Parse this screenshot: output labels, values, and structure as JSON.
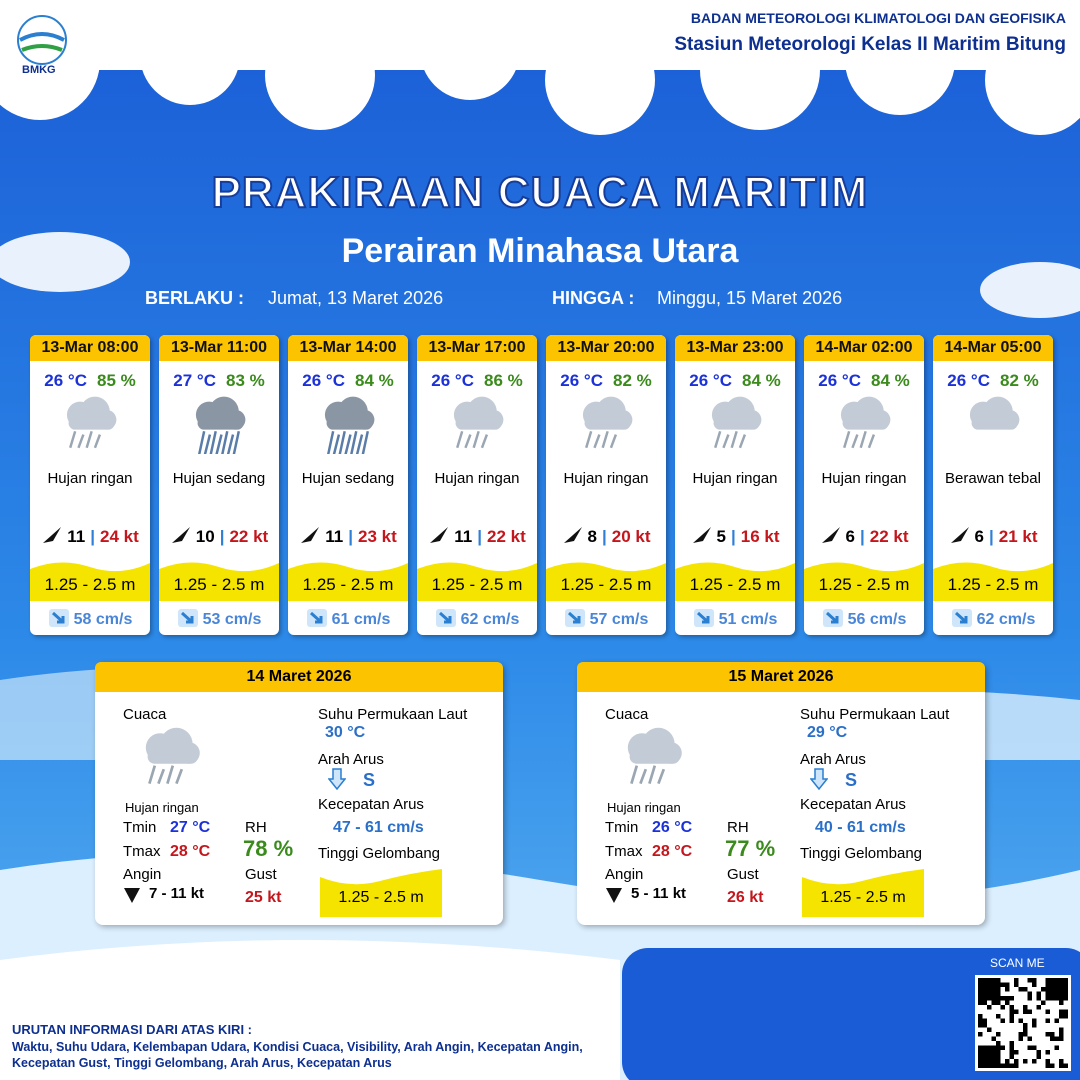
{
  "header": {
    "logo": "BMKG",
    "org": "BADAN METEOROLOGI KLIMATOLOGI DAN GEOFISIKA",
    "station": "Stasiun Meteorologi Kelas II Maritim Bitung"
  },
  "title": "PRAKIRAAN CUACA MARITIM",
  "subtitle": "Perairan Minahasa Utara",
  "validity": {
    "from_label": "BERLAKU :",
    "from": "Jumat, 13 Maret 2026",
    "to_label": "HINGGA :",
    "to": "Minggu, 15 Maret 2026"
  },
  "cards": [
    {
      "time": "13-Mar 08:00",
      "temp": "26 °C",
      "rh": "85 %",
      "weather": "Hujan ringan",
      "wind": "11",
      "gust": "24 kt",
      "wave": "1.25 - 2.5 m",
      "current": "58 cm/s"
    },
    {
      "time": "13-Mar 11:00",
      "temp": "27 °C",
      "rh": "83 %",
      "weather": "Hujan sedang",
      "wind": "10",
      "gust": "22 kt",
      "wave": "1.25 - 2.5 m",
      "current": "53 cm/s"
    },
    {
      "time": "13-Mar 14:00",
      "temp": "26 °C",
      "rh": "84 %",
      "weather": "Hujan sedang",
      "wind": "11",
      "gust": "23 kt",
      "wave": "1.25 - 2.5 m",
      "current": "61 cm/s"
    },
    {
      "time": "13-Mar 17:00",
      "temp": "26 °C",
      "rh": "86 %",
      "weather": "Hujan ringan",
      "wind": "11",
      "gust": "22 kt",
      "wave": "1.25 - 2.5 m",
      "current": "62 cm/s"
    },
    {
      "time": "13-Mar 20:00",
      "temp": "26 °C",
      "rh": "82 %",
      "weather": "Hujan ringan",
      "wind": "8",
      "gust": "20 kt",
      "wave": "1.25 - 2.5 m",
      "current": "57 cm/s"
    },
    {
      "time": "13-Mar 23:00",
      "temp": "26 °C",
      "rh": "84 %",
      "weather": "Hujan ringan",
      "wind": "5",
      "gust": "16 kt",
      "wave": "1.25 - 2.5 m",
      "current": "51 cm/s"
    },
    {
      "time": "14-Mar 02:00",
      "temp": "26 °C",
      "rh": "84 %",
      "weather": "Hujan ringan",
      "wind": "6",
      "gust": "22 kt",
      "wave": "1.25 - 2.5 m",
      "current": "56 cm/s"
    },
    {
      "time": "14-Mar 05:00",
      "temp": "26 °C",
      "rh": "82 %",
      "weather": "Berawan tebal",
      "wind": "6",
      "gust": "21 kt",
      "wave": "1.25 - 2.5 m",
      "current": "62 cm/s"
    }
  ],
  "daily_labels": {
    "weather": "Cuaca",
    "tmin": "Tmin",
    "tmax": "Tmax",
    "wind": "Angin",
    "rh": "RH",
    "gust": "Gust",
    "sst": "Suhu Permukaan Laut",
    "current_dir": "Arah Arus",
    "current_speed": "Kecepatan Arus",
    "wave": "Tinggi Gelombang"
  },
  "daily": [
    {
      "date": "14 Maret 2026",
      "weather": "Hujan ringan",
      "tmin": "27 °C",
      "tmax": "28 °C",
      "wind": "7 - 11 kt",
      "rh": "78 %",
      "gust": "25 kt",
      "sst": "30 °C",
      "current_dir": "S",
      "current_speed": "47 - 61 cm/s",
      "wave": "1.25 - 2.5 m"
    },
    {
      "date": "15 Maret 2026",
      "weather": "Hujan ringan",
      "tmin": "26 °C",
      "tmax": "28 °C",
      "wind": "5 - 11 kt",
      "rh": "77 %",
      "gust": "26 kt",
      "sst": "29 °C",
      "current_dir": "S",
      "current_speed": "40 - 61 cm/s",
      "wave": "1.25 - 2.5 m"
    }
  ],
  "footer": {
    "scan": "SCAN ME",
    "note_title": "URUTAN INFORMASI DARI ATAS KIRI :",
    "note_text": "Waktu, Suhu Udara, Kelembapan Udara, Kondisi Cuaca, Visibility, Arah Angin, Kecepatan Angin, Kecepatan Gust, Tinggi Gelombang, Arah Arus, Kecepatan Arus"
  }
}
